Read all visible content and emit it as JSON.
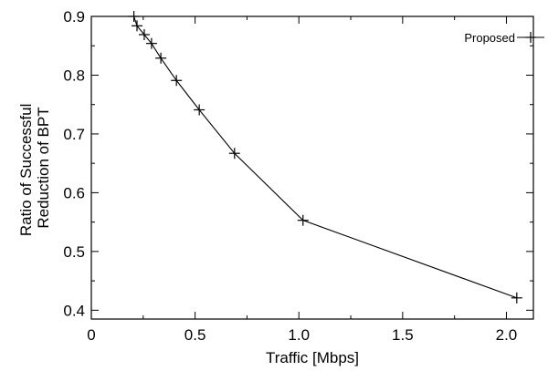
{
  "chart_data": {
    "type": "line",
    "xlabel": "Traffic [Mbps]",
    "ylabel": [
      "Ratio of Successful",
      "Reduction of BPT"
    ],
    "xlim": [
      0,
      2.13
    ],
    "ylim": [
      0.385,
      0.9
    ],
    "x_ticks": [
      0,
      0.5,
      1.0,
      1.5,
      2.0
    ],
    "x_tick_labels": [
      "0",
      "0.5",
      "1.0",
      "1.5",
      "2.0"
    ],
    "y_ticks": [
      0.4,
      0.5,
      0.6,
      0.7,
      0.8,
      0.9
    ],
    "y_tick_labels": [
      "0.4",
      "0.5",
      "0.6",
      "0.7",
      "0.8",
      "0.9"
    ],
    "grid": false,
    "legend_position": "top-right",
    "marker": "plus",
    "series": [
      {
        "name": "Proposed",
        "color": "#000000",
        "x": [
          0.205,
          0.22,
          0.255,
          0.29,
          0.335,
          0.41,
          0.52,
          0.69,
          1.02,
          2.05
        ],
        "y": [
          0.9,
          0.884,
          0.869,
          0.854,
          0.829,
          0.791,
          0.741,
          0.667,
          0.553,
          0.421
        ]
      }
    ]
  }
}
